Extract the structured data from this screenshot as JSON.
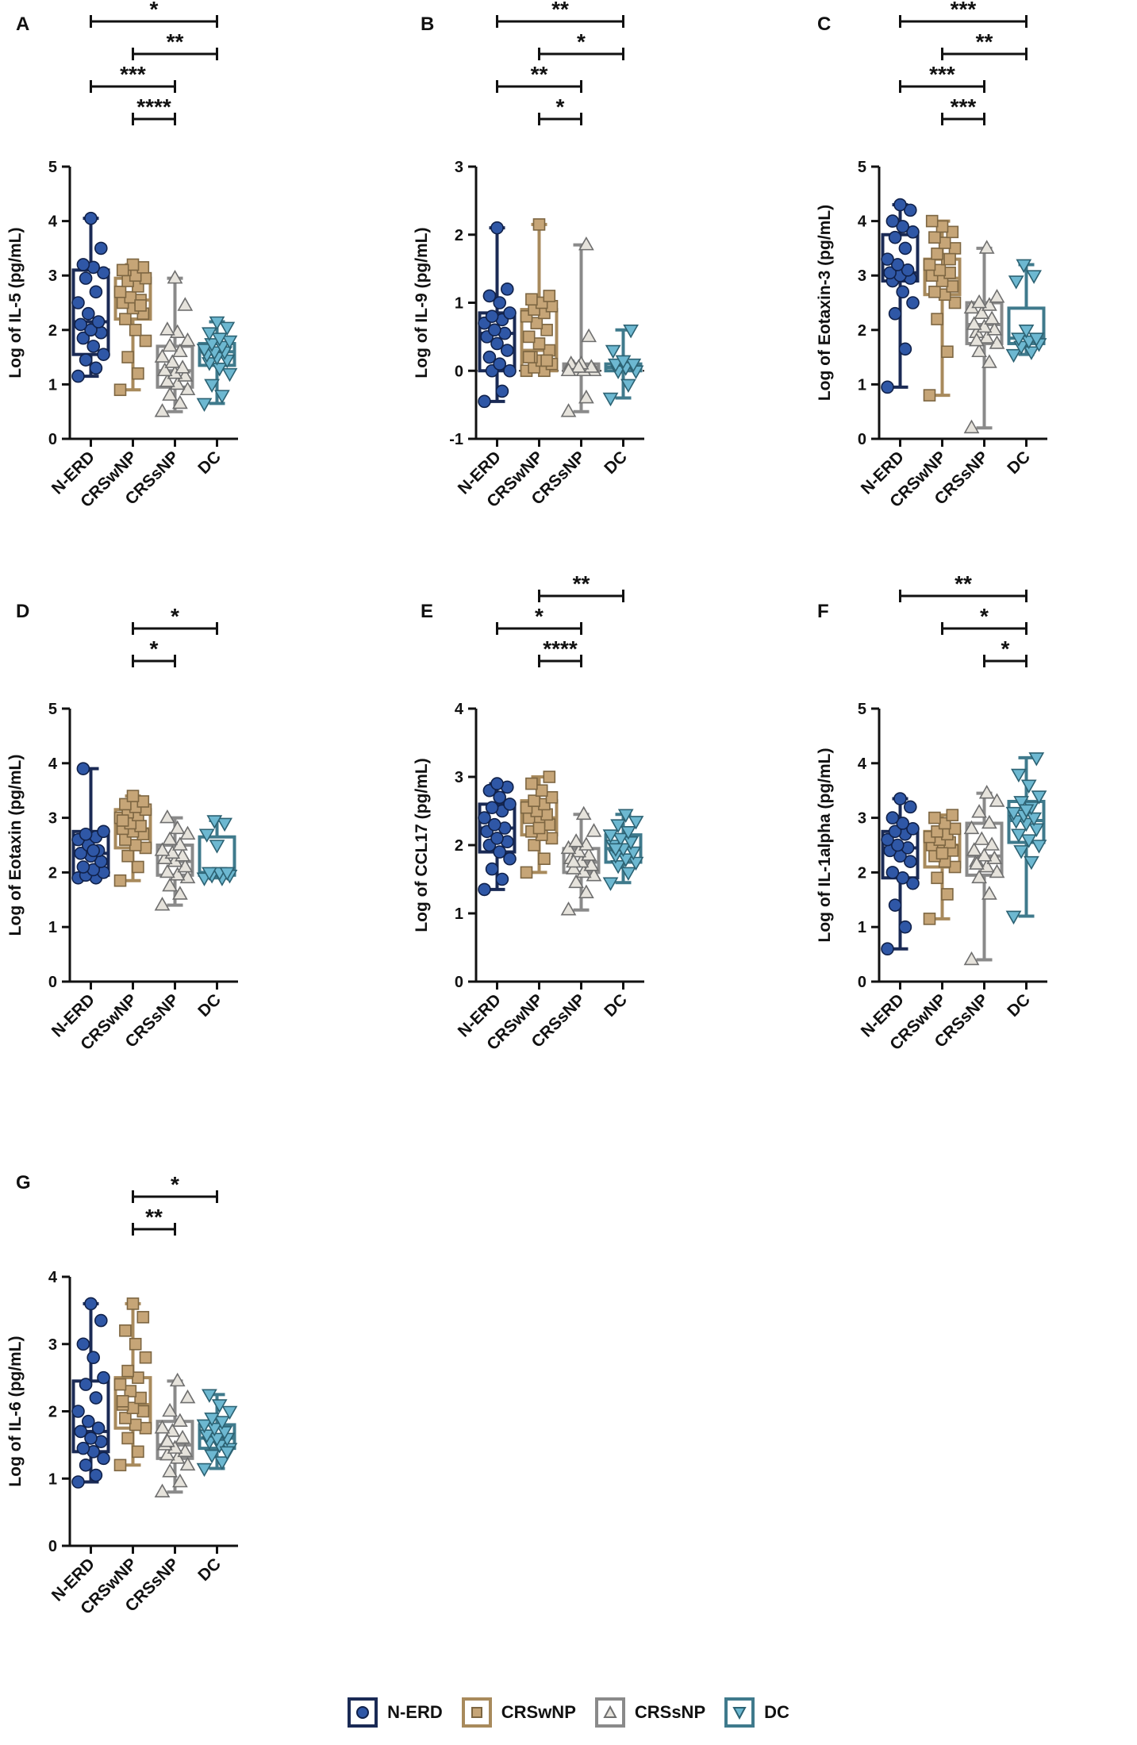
{
  "groups": [
    "N-ERD",
    "CRSwNP",
    "CRSsNP",
    "DC"
  ],
  "colors": {
    "N-ERD": {
      "box": "#1a2a55",
      "fill": "#2f57a6",
      "stroke": "#10214a"
    },
    "CRSwNP": {
      "box": "#a88a5c",
      "fill": "#c6a577",
      "stroke": "#7d6642"
    },
    "CRSsNP": {
      "box": "#8a8a8a",
      "fill": "#e6e3dc",
      "stroke": "#6f6f6f"
    },
    "DC": {
      "box": "#3f7a8c",
      "fill": "#6db8d1",
      "stroke": "#2c6273"
    }
  },
  "legend": [
    {
      "label": "N-ERD",
      "icon": "circle-icon"
    },
    {
      "label": "CRSwNP",
      "icon": "square-icon"
    },
    {
      "label": "CRSsNP",
      "icon": "triangle-icon"
    },
    {
      "label": "DC",
      "icon": "down-triangle-icon"
    }
  ],
  "chart_data": [
    {
      "panel": "A",
      "type": "box",
      "ylabel": "Log of IL-5 (pg/mL)",
      "ylim": [
        0,
        5
      ],
      "yticks": [
        0,
        1,
        2,
        3,
        4,
        5
      ],
      "zero_line": false,
      "boxes": [
        {
          "min": 1.15,
          "q1": 1.55,
          "median": 2.15,
          "q3": 3.1,
          "max": 4.05
        },
        {
          "min": 0.9,
          "q1": 2.2,
          "median": 2.55,
          "q3": 2.95,
          "max": 3.2
        },
        {
          "min": 0.5,
          "q1": 0.95,
          "median": 1.25,
          "q3": 1.7,
          "max": 2.95
        },
        {
          "min": 0.65,
          "q1": 1.35,
          "median": 1.6,
          "q3": 1.75,
          "max": 2.15
        }
      ],
      "points": [
        [
          1.15,
          1.3,
          1.45,
          1.55,
          1.7,
          1.85,
          1.95,
          2.0,
          2.1,
          2.15,
          2.3,
          2.5,
          2.7,
          2.95,
          3.05,
          3.15,
          3.2,
          3.5,
          4.05
        ],
        [
          0.9,
          1.2,
          1.5,
          1.8,
          2.0,
          2.2,
          2.3,
          2.4,
          2.5,
          2.55,
          2.6,
          2.7,
          2.8,
          2.9,
          2.95,
          3.0,
          3.1,
          3.15,
          3.2,
          3.1,
          2.45
        ],
        [
          0.5,
          0.65,
          0.8,
          0.9,
          1.0,
          1.05,
          1.15,
          1.2,
          1.25,
          1.3,
          1.4,
          1.5,
          1.6,
          1.7,
          1.8,
          1.95,
          2.0,
          2.45,
          2.95
        ],
        [
          0.65,
          0.8,
          1.0,
          1.2,
          1.3,
          1.4,
          1.45,
          1.5,
          1.55,
          1.6,
          1.6,
          1.65,
          1.7,
          1.75,
          1.8,
          1.85,
          1.95,
          2.05,
          2.15
        ]
      ],
      "sig": [
        {
          "g1": 0,
          "g2": 3,
          "label": "*"
        },
        {
          "g1": 1,
          "g2": 3,
          "label": "**"
        },
        {
          "g1": 0,
          "g2": 2,
          "label": "***"
        },
        {
          "g1": 1,
          "g2": 2,
          "label": "****"
        }
      ]
    },
    {
      "panel": "B",
      "type": "box",
      "ylabel": "Log of IL-9 (pg/mL)",
      "ylim": [
        -1,
        3
      ],
      "yticks": [
        -1,
        0,
        1,
        2,
        3
      ],
      "zero_line": true,
      "boxes": [
        {
          "min": -0.45,
          "q1": 0.0,
          "median": 0.55,
          "q3": 0.85,
          "max": 2.1
        },
        {
          "min": 0.0,
          "q1": 0.0,
          "median": 0.3,
          "q3": 0.9,
          "max": 2.15
        },
        {
          "min": -0.6,
          "q1": 0.0,
          "median": 0.05,
          "q3": 0.1,
          "max": 1.85
        },
        {
          "min": -0.4,
          "q1": 0.0,
          "median": 0.05,
          "q3": 0.1,
          "max": 0.6
        }
      ],
      "points": [
        [
          -0.45,
          -0.3,
          0.0,
          0.0,
          0.1,
          0.2,
          0.3,
          0.4,
          0.5,
          0.55,
          0.6,
          0.7,
          0.75,
          0.8,
          0.85,
          1.0,
          1.1,
          1.2,
          2.1
        ],
        [
          0.0,
          0.0,
          0.05,
          0.1,
          0.15,
          0.2,
          0.3,
          0.4,
          0.5,
          0.6,
          0.7,
          0.8,
          0.85,
          0.9,
          0.95,
          1.0,
          1.05,
          1.1,
          2.15,
          0.2,
          0.15
        ],
        [
          -0.6,
          -0.4,
          0.0,
          0.0,
          0.0,
          0.05,
          0.05,
          0.1,
          0.1,
          0.5,
          0.05,
          0.0,
          1.85
        ],
        [
          -0.4,
          -0.2,
          0.0,
          0.0,
          0.05,
          0.1,
          0.1,
          0.15,
          0.3,
          0.6
        ]
      ],
      "sig": [
        {
          "g1": 0,
          "g2": 3,
          "label": "**"
        },
        {
          "g1": 1,
          "g2": 3,
          "label": "*"
        },
        {
          "g1": 0,
          "g2": 2,
          "label": "**"
        },
        {
          "g1": 1,
          "g2": 2,
          "label": "*"
        }
      ]
    },
    {
      "panel": "C",
      "type": "box",
      "ylabel": "Log of Eotaxin-3 (pg/mL)",
      "ylim": [
        0,
        5
      ],
      "yticks": [
        0,
        1,
        2,
        3,
        4,
        5
      ],
      "zero_line": false,
      "boxes": [
        {
          "min": 0.95,
          "q1": 2.9,
          "median": 3.05,
          "q3": 3.75,
          "max": 4.3
        },
        {
          "min": 0.8,
          "q1": 2.65,
          "median": 2.95,
          "q3": 3.3,
          "max": 4.0
        },
        {
          "min": 0.2,
          "q1": 1.75,
          "median": 2.1,
          "q3": 2.5,
          "max": 3.5
        },
        {
          "min": 1.55,
          "q1": 1.75,
          "median": 1.85,
          "q3": 2.4,
          "max": 3.2
        }
      ],
      "points": [
        [
          0.95,
          1.65,
          2.3,
          2.5,
          2.7,
          2.9,
          2.95,
          3.0,
          3.05,
          3.1,
          3.2,
          3.3,
          3.5,
          3.7,
          3.8,
          3.9,
          4.0,
          4.2,
          4.3
        ],
        [
          0.8,
          1.6,
          2.2,
          2.5,
          2.65,
          2.7,
          2.8,
          2.9,
          3.0,
          3.05,
          3.1,
          3.2,
          3.3,
          3.4,
          3.5,
          3.6,
          3.7,
          3.8,
          3.9,
          4.0,
          3.3
        ],
        [
          0.2,
          1.4,
          1.6,
          1.75,
          1.85,
          1.95,
          2.0,
          2.05,
          2.1,
          2.2,
          2.3,
          2.4,
          2.45,
          2.5,
          2.6,
          3.5,
          1.8
        ],
        [
          1.55,
          1.6,
          1.7,
          1.75,
          1.8,
          1.85,
          1.85,
          2.0,
          2.9,
          3.0,
          3.2
        ]
      ],
      "sig": [
        {
          "g1": 0,
          "g2": 3,
          "label": "***"
        },
        {
          "g1": 1,
          "g2": 3,
          "label": "**"
        },
        {
          "g1": 0,
          "g2": 2,
          "label": "***"
        },
        {
          "g1": 1,
          "g2": 2,
          "label": "***"
        }
      ]
    },
    {
      "panel": "D",
      "type": "box",
      "ylabel": "Log of Eotaxin (pg/mL)",
      "ylim": [
        0,
        5
      ],
      "yticks": [
        0,
        1,
        2,
        3,
        4,
        5
      ],
      "zero_line": false,
      "boxes": [
        {
          "min": 1.9,
          "q1": 1.95,
          "median": 2.35,
          "q3": 2.75,
          "max": 3.9
        },
        {
          "min": 1.85,
          "q1": 2.45,
          "median": 2.8,
          "q3": 3.15,
          "max": 3.4
        },
        {
          "min": 1.4,
          "q1": 1.95,
          "median": 2.2,
          "q3": 2.5,
          "max": 3.0
        },
        {
          "min": 1.9,
          "q1": 1.95,
          "median": 2.0,
          "q3": 2.65,
          "max": 2.95
        }
      ],
      "points": [
        [
          1.9,
          1.9,
          1.95,
          2.0,
          2.05,
          2.1,
          2.2,
          2.3,
          2.35,
          2.4,
          2.5,
          2.6,
          2.65,
          2.7,
          2.75,
          2.4,
          3.9
        ],
        [
          1.85,
          2.1,
          2.3,
          2.45,
          2.5,
          2.6,
          2.7,
          2.75,
          2.8,
          2.85,
          2.9,
          3.0,
          3.05,
          3.1,
          3.15,
          3.2,
          3.25,
          3.3,
          3.4,
          2.95
        ],
        [
          1.4,
          1.6,
          1.75,
          1.9,
          1.95,
          2.0,
          2.1,
          2.2,
          2.25,
          2.3,
          2.35,
          2.4,
          2.5,
          2.6,
          2.7,
          2.8,
          3.0
        ],
        [
          1.9,
          1.9,
          1.95,
          1.95,
          2.0,
          2.0,
          2.0,
          2.5,
          2.7,
          2.9,
          2.95
        ]
      ],
      "sig": [
        {
          "g1": 1,
          "g2": 3,
          "label": "*"
        },
        {
          "g1": 1,
          "g2": 2,
          "label": "*"
        }
      ]
    },
    {
      "panel": "E",
      "type": "box",
      "ylabel": "Log of CCL17 (pg/mL)",
      "ylim": [
        0,
        4
      ],
      "yticks": [
        0,
        1,
        2,
        3,
        4
      ],
      "zero_line": false,
      "boxes": [
        {
          "min": 1.35,
          "q1": 1.9,
          "median": 2.25,
          "q3": 2.6,
          "max": 2.9
        },
        {
          "min": 1.6,
          "q1": 2.15,
          "median": 2.4,
          "q3": 2.65,
          "max": 3.0
        },
        {
          "min": 1.05,
          "q1": 1.6,
          "median": 1.75,
          "q3": 1.95,
          "max": 2.45
        },
        {
          "min": 1.45,
          "q1": 1.75,
          "median": 1.95,
          "q3": 2.15,
          "max": 2.45
        }
      ],
      "points": [
        [
          1.35,
          1.5,
          1.65,
          1.8,
          1.9,
          2.0,
          2.05,
          2.1,
          2.2,
          2.25,
          2.3,
          2.4,
          2.5,
          2.55,
          2.6,
          2.7,
          2.8,
          2.85,
          2.9
        ],
        [
          1.6,
          1.8,
          2.0,
          2.1,
          2.15,
          2.2,
          2.3,
          2.35,
          2.4,
          2.45,
          2.5,
          2.55,
          2.6,
          2.65,
          2.7,
          2.8,
          2.9,
          3.0,
          2.25
        ],
        [
          1.05,
          1.3,
          1.45,
          1.55,
          1.6,
          1.65,
          1.7,
          1.75,
          1.8,
          1.85,
          1.9,
          1.95,
          2.0,
          2.05,
          2.2,
          2.45,
          1.75
        ],
        [
          1.45,
          1.6,
          1.7,
          1.75,
          1.8,
          1.85,
          1.9,
          1.95,
          2.0,
          2.05,
          2.1,
          2.15,
          2.2,
          2.3,
          2.35,
          2.45,
          1.95
        ]
      ],
      "sig": [
        {
          "g1": 1,
          "g2": 3,
          "label": "**"
        },
        {
          "g1": 0,
          "g2": 2,
          "label": "*"
        },
        {
          "g1": 1,
          "g2": 2,
          "label": "****"
        }
      ]
    },
    {
      "panel": "F",
      "type": "box",
      "ylabel": "Log of IL-1alpha (pg/mL)",
      "ylim": [
        0,
        5
      ],
      "yticks": [
        0,
        1,
        2,
        3,
        4,
        5
      ],
      "zero_line": false,
      "boxes": [
        {
          "min": 0.6,
          "q1": 1.9,
          "median": 2.45,
          "q3": 2.75,
          "max": 3.35
        },
        {
          "min": 1.15,
          "q1": 2.1,
          "median": 2.5,
          "q3": 2.75,
          "max": 3.05
        },
        {
          "min": 0.4,
          "q1": 1.95,
          "median": 2.3,
          "q3": 2.9,
          "max": 3.45
        },
        {
          "min": 1.2,
          "q1": 2.55,
          "median": 2.95,
          "q3": 3.3,
          "max": 4.1
        }
      ],
      "points": [
        [
          0.6,
          1.0,
          1.4,
          1.8,
          1.9,
          2.0,
          2.2,
          2.3,
          2.4,
          2.45,
          2.5,
          2.6,
          2.7,
          2.75,
          2.8,
          2.9,
          3.0,
          3.2,
          3.35
        ],
        [
          1.15,
          1.6,
          1.9,
          2.1,
          2.2,
          2.3,
          2.4,
          2.45,
          2.5,
          2.55,
          2.6,
          2.65,
          2.7,
          2.75,
          2.8,
          2.9,
          3.0,
          3.05,
          2.35
        ],
        [
          0.4,
          1.6,
          1.9,
          2.0,
          2.1,
          2.2,
          2.25,
          2.3,
          2.4,
          2.5,
          2.6,
          2.8,
          2.9,
          3.1,
          3.3,
          3.45,
          2.15
        ],
        [
          1.2,
          2.2,
          2.4,
          2.5,
          2.6,
          2.7,
          2.8,
          2.9,
          2.95,
          3.0,
          3.05,
          3.1,
          3.2,
          3.3,
          3.4,
          3.6,
          3.8,
          4.1,
          3.15
        ]
      ],
      "sig": [
        {
          "g1": 0,
          "g2": 3,
          "label": "**"
        },
        {
          "g1": 1,
          "g2": 3,
          "label": "*"
        },
        {
          "g1": 2,
          "g2": 3,
          "label": "*"
        }
      ]
    },
    {
      "panel": "G",
      "type": "box",
      "ylabel": "Log of IL-6 (pg/mL)",
      "ylim": [
        0,
        4
      ],
      "yticks": [
        0,
        1,
        2,
        3,
        4
      ],
      "zero_line": false,
      "boxes": [
        {
          "min": 0.95,
          "q1": 1.4,
          "median": 1.7,
          "q3": 2.45,
          "max": 3.6
        },
        {
          "min": 1.2,
          "q1": 1.75,
          "median": 2.1,
          "q3": 2.5,
          "max": 3.6
        },
        {
          "min": 0.8,
          "q1": 1.3,
          "median": 1.5,
          "q3": 1.85,
          "max": 2.45
        },
        {
          "min": 1.15,
          "q1": 1.45,
          "median": 1.6,
          "q3": 1.8,
          "max": 2.25
        }
      ],
      "points": [
        [
          0.95,
          1.05,
          1.2,
          1.3,
          1.4,
          1.45,
          1.55,
          1.6,
          1.7,
          1.75,
          1.85,
          2.0,
          2.2,
          2.4,
          2.5,
          2.8,
          3.0,
          3.35,
          3.6
        ],
        [
          1.2,
          1.4,
          1.6,
          1.75,
          1.8,
          1.9,
          2.0,
          2.05,
          2.1,
          2.2,
          2.3,
          2.4,
          2.5,
          2.6,
          2.8,
          3.0,
          3.2,
          3.4,
          3.6,
          2.15
        ],
        [
          0.8,
          0.95,
          1.1,
          1.2,
          1.3,
          1.35,
          1.4,
          1.45,
          1.5,
          1.6,
          1.7,
          1.75,
          1.85,
          2.0,
          2.2,
          2.45,
          1.55
        ],
        [
          1.15,
          1.25,
          1.35,
          1.45,
          1.5,
          1.55,
          1.6,
          1.6,
          1.65,
          1.7,
          1.75,
          1.8,
          1.85,
          1.9,
          2.0,
          2.1,
          2.25,
          1.4
        ]
      ],
      "sig": [
        {
          "g1": 1,
          "g2": 3,
          "label": "*"
        },
        {
          "g1": 1,
          "g2": 2,
          "label": "**"
        }
      ]
    }
  ]
}
